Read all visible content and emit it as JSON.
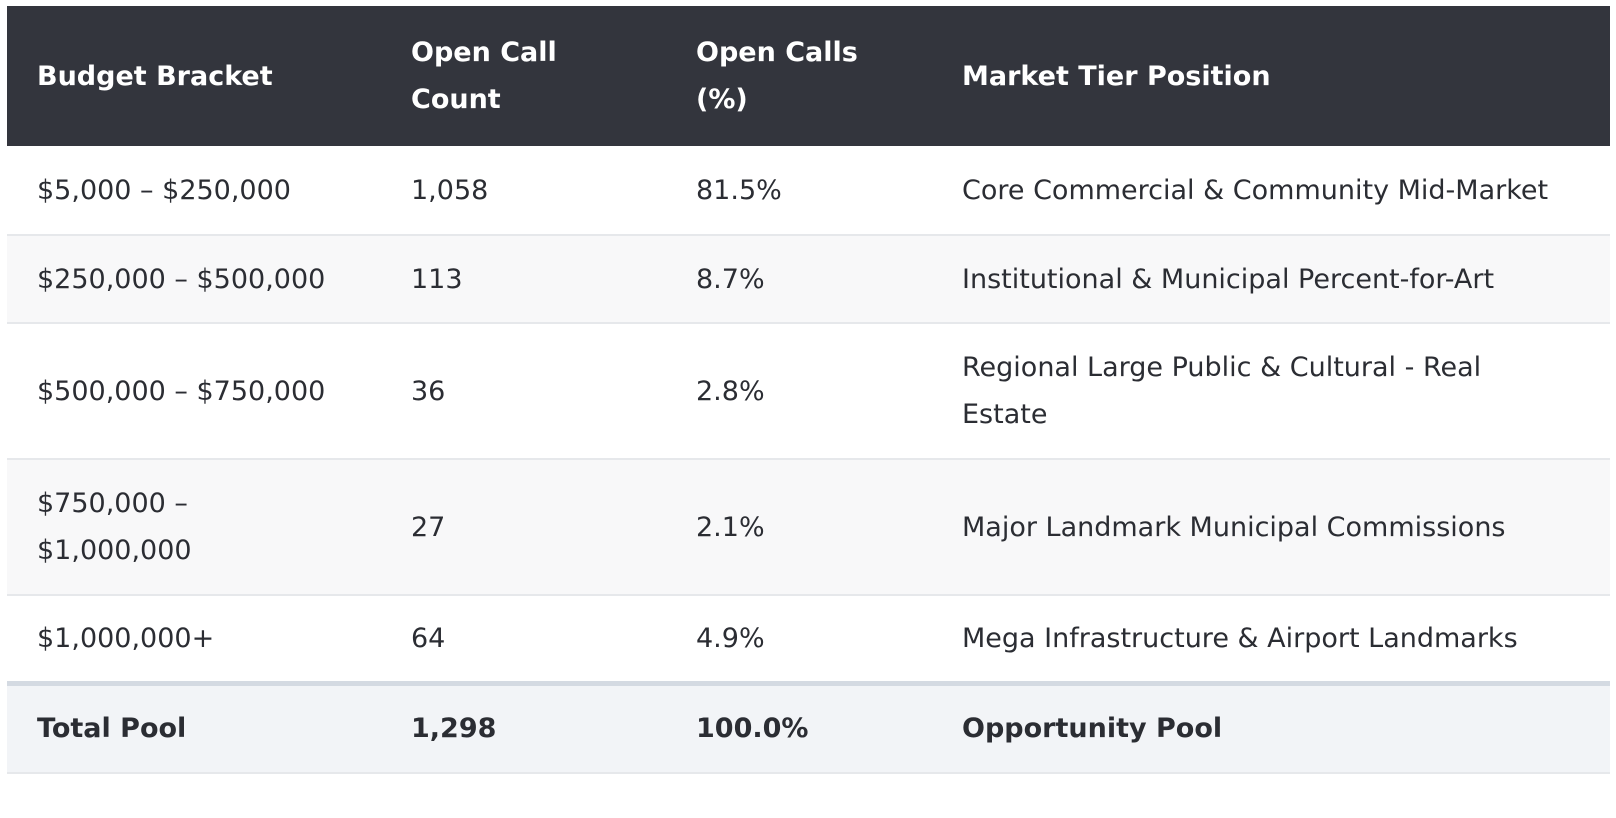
{
  "table": {
    "headers": [
      "Budget Bracket",
      "Open Call Count",
      "Open Calls (%)",
      "Market Tier Position"
    ],
    "rows": [
      {
        "budget_bracket": "$5,000 – $250,000",
        "open_call_count": "1,058",
        "open_calls_pct": "81.5%",
        "market_tier_position": "Core Commercial & Community Mid-Market"
      },
      {
        "budget_bracket": "$250,000 – $500,000",
        "open_call_count": "113",
        "open_calls_pct": "8.7%",
        "market_tier_position": "Institutional & Municipal Percent-for-Art"
      },
      {
        "budget_bracket": "$500,000 – $750,000",
        "open_call_count": "36",
        "open_calls_pct": "2.8%",
        "market_tier_position": "Regional Large Public & Cultural - Real Estate"
      },
      {
        "budget_bracket": "$750,000 – $1,000,000",
        "open_call_count": "27",
        "open_calls_pct": "2.1%",
        "market_tier_position": "Major Landmark Municipal Commissions"
      },
      {
        "budget_bracket": "$1,000,000+",
        "open_call_count": "64",
        "open_calls_pct": "4.9%",
        "market_tier_position": "Mega Infrastructure & Airport Landmarks"
      }
    ],
    "total": {
      "budget_bracket": "Total Pool",
      "open_call_count": "1,298",
      "open_calls_pct": "100.0%",
      "market_tier_position": "Opportunity Pool"
    }
  },
  "colors": {
    "header_background": "#33353d",
    "header_text": "#ffffff",
    "body_text": "#2b2d33",
    "row_alt_background": "#f8f8f9",
    "total_background": "#f2f4f7",
    "total_divider": "#d4dae2"
  }
}
